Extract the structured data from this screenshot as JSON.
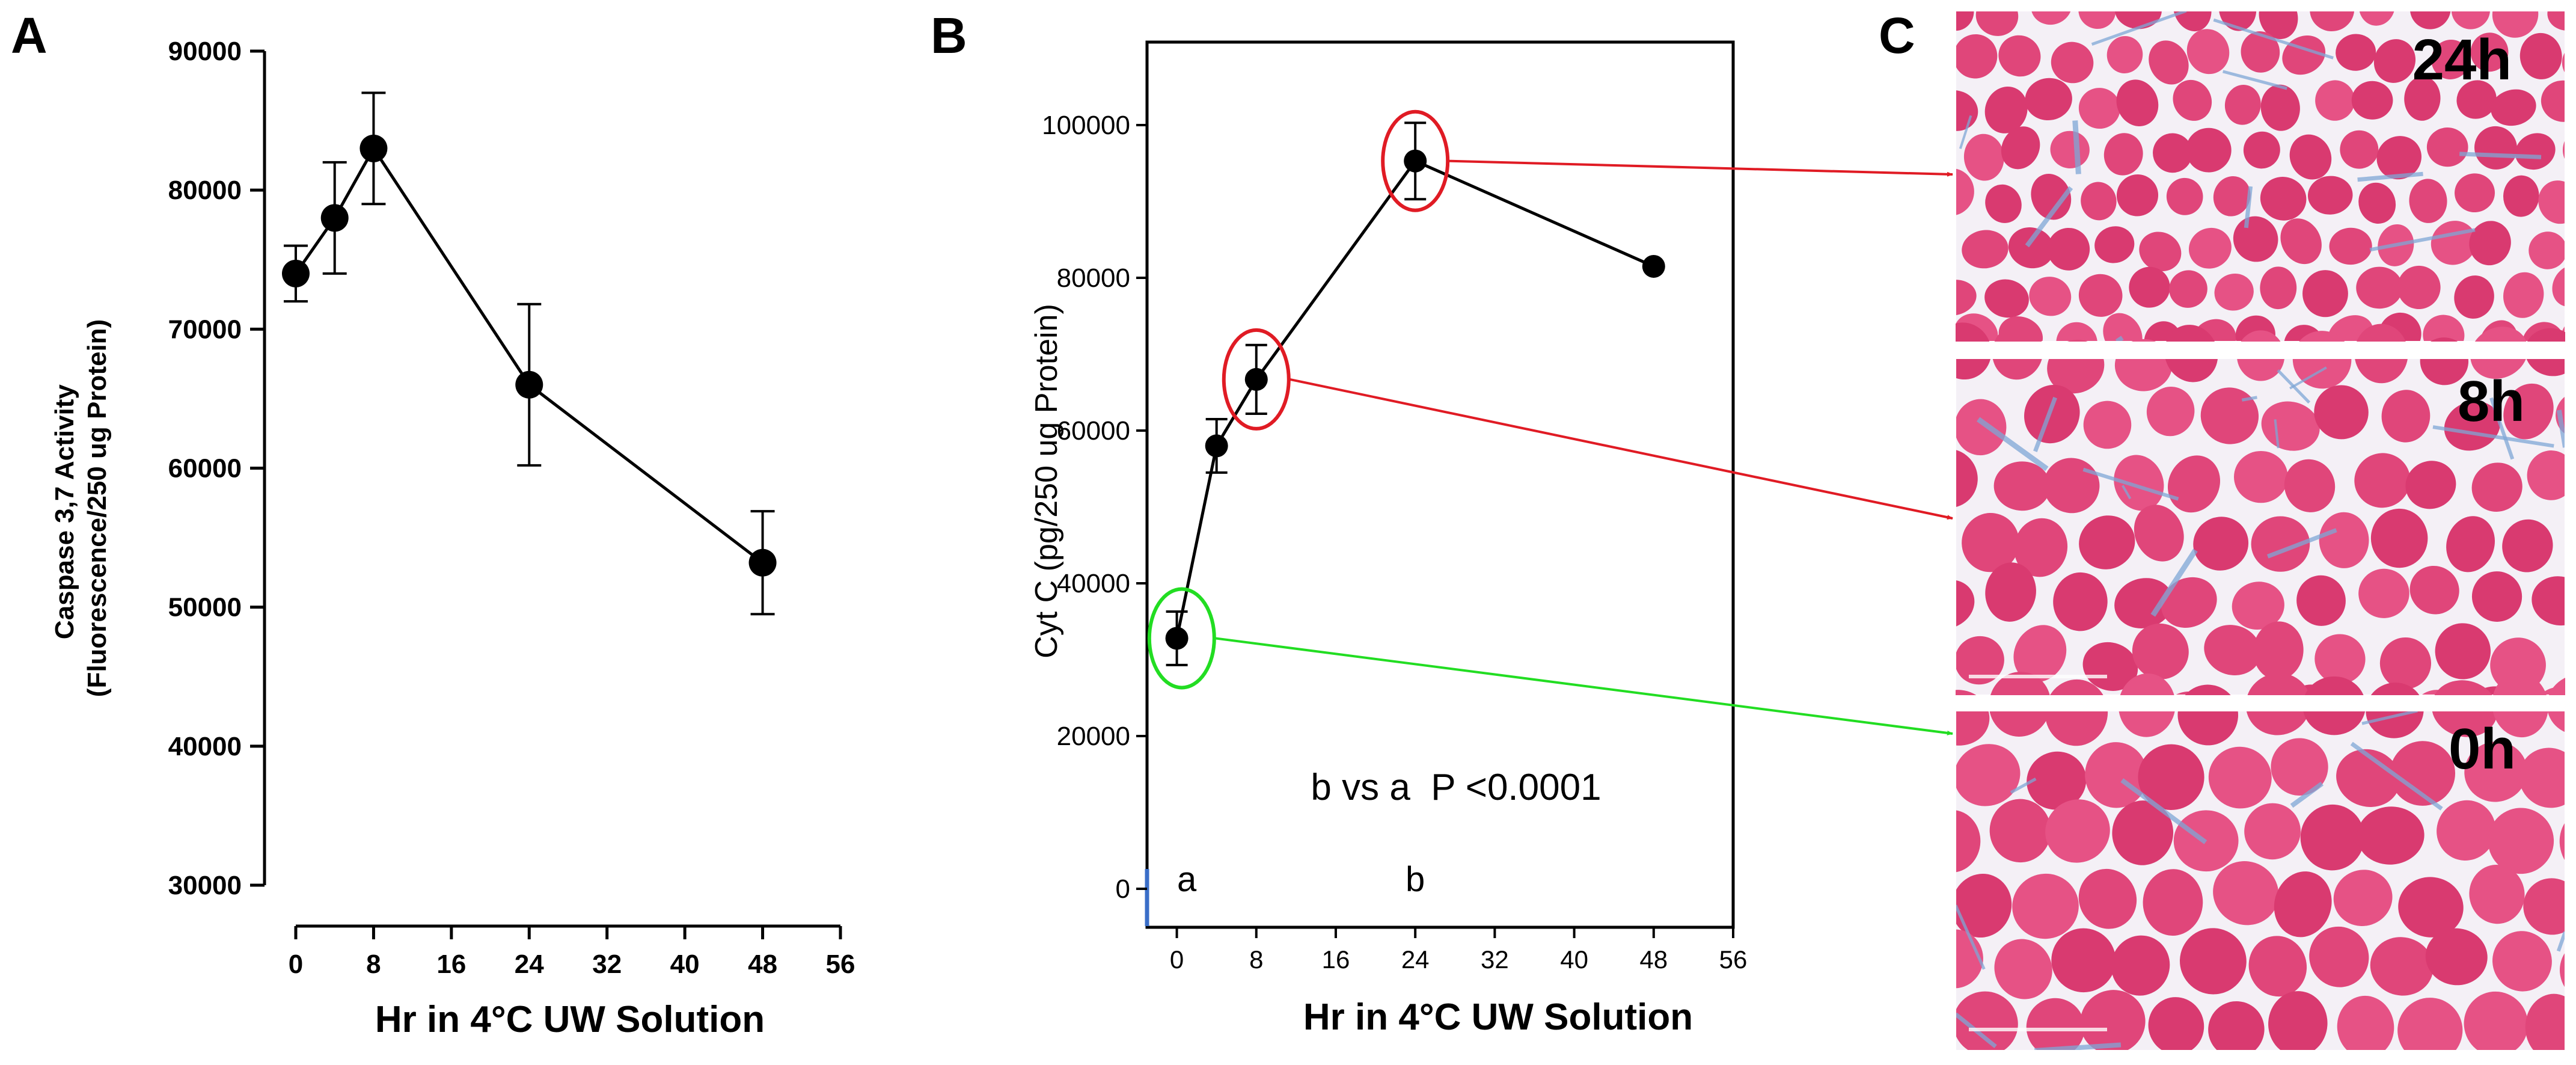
{
  "panel_labels": {
    "a": "A",
    "b": "B",
    "c": "C"
  },
  "colors": {
    "ink": "#000000",
    "red_marker": "#e01b24",
    "green_marker": "#22dd22",
    "tissue_pink": "#e0467a",
    "tissue_blue": "#7fa7d6",
    "gap_white": "#f4f0f6"
  },
  "chart_data": [
    {
      "id": "A",
      "type": "line",
      "xlabel": "Hr in 4°C UW Solution",
      "ylabel": [
        "Caspase 3,7 Activity",
        "(Fluorescence/250 ug Protein)"
      ],
      "xlim": [
        0,
        56
      ],
      "ylim": [
        30000,
        90000
      ],
      "xticks": [
        0,
        8,
        16,
        24,
        32,
        40,
        48,
        56
      ],
      "yticks": [
        30000,
        40000,
        50000,
        60000,
        70000,
        80000,
        90000
      ],
      "series": [
        {
          "name": "Caspase 3,7",
          "x": [
            0,
            4,
            8,
            24,
            48
          ],
          "y": [
            74000,
            78000,
            83000,
            66000,
            53200
          ],
          "err": [
            2000,
            4000,
            4000,
            5800,
            3700
          ]
        }
      ]
    },
    {
      "id": "B",
      "type": "line",
      "xlabel": "Hr in 4°C UW Solution",
      "ylabel": "Cyt C (pg/250 ug Protein)",
      "xlim": [
        -3,
        56
      ],
      "ylim": [
        -5000,
        110000
      ],
      "xticks": [
        0,
        8,
        16,
        24,
        32,
        40,
        48,
        56
      ],
      "yticks": [
        0,
        20000,
        40000,
        60000,
        80000,
        100000
      ],
      "series": [
        {
          "name": "Cyt C",
          "x": [
            0,
            4,
            8,
            24,
            48
          ],
          "y": [
            32800,
            58000,
            66700,
            95300,
            81500
          ],
          "err": [
            3500,
            3500,
            4500,
            5000,
            0
          ]
        }
      ],
      "annotation": "b vs a  P <0.0001",
      "group_labels": [
        {
          "x": 1,
          "text": "a"
        },
        {
          "x": 24,
          "text": "b"
        }
      ],
      "highlights": [
        {
          "x": 24,
          "y": 95300,
          "color": "red",
          "target": "24h"
        },
        {
          "x": 8,
          "y": 66700,
          "color": "red",
          "target": "8h"
        },
        {
          "x": 0.5,
          "y": 32800,
          "color": "green",
          "target": "0h"
        }
      ]
    }
  ],
  "micrographs": [
    {
      "label": "24h"
    },
    {
      "label": "8h"
    },
    {
      "label": "0h"
    }
  ]
}
